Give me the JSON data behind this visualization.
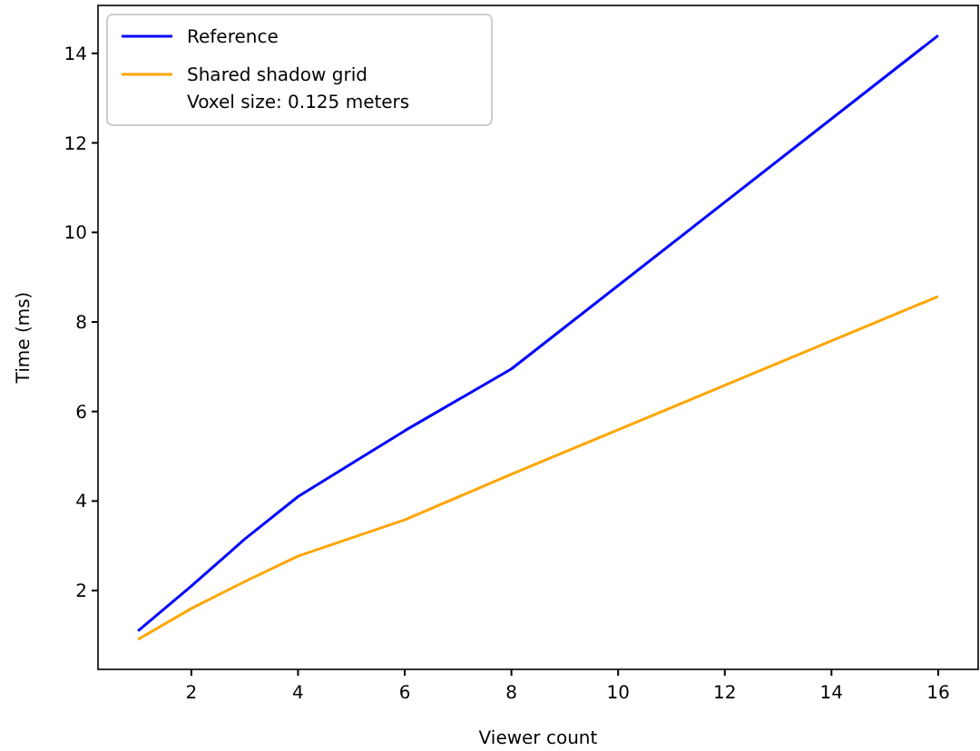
{
  "chart_data": {
    "type": "line",
    "xlabel": "Viewer count",
    "ylabel": "Time (ms)",
    "x": [
      1,
      2,
      3,
      4,
      6,
      8,
      16
    ],
    "series": [
      {
        "name": "Reference",
        "color": "#0000ff",
        "values": [
          1.1,
          2.1,
          3.15,
          4.1,
          5.57,
          6.95,
          14.4
        ]
      },
      {
        "name": "Shared shadow grid\nVoxel size: 0.125 meters",
        "color": "#ffa500",
        "values": [
          0.91,
          1.6,
          2.2,
          2.77,
          3.58,
          4.6,
          8.57
        ]
      }
    ],
    "xlim": [
      0.25,
      16.75
    ],
    "xticks": [
      2,
      4,
      6,
      8,
      10,
      12,
      14,
      16
    ],
    "ylim": [
      0.24,
      15.07
    ],
    "yticks": [
      2,
      4,
      6,
      8,
      10,
      12,
      14
    ],
    "legend": "top left",
    "grid": false,
    "marker": "none",
    "line_style": "solid"
  }
}
